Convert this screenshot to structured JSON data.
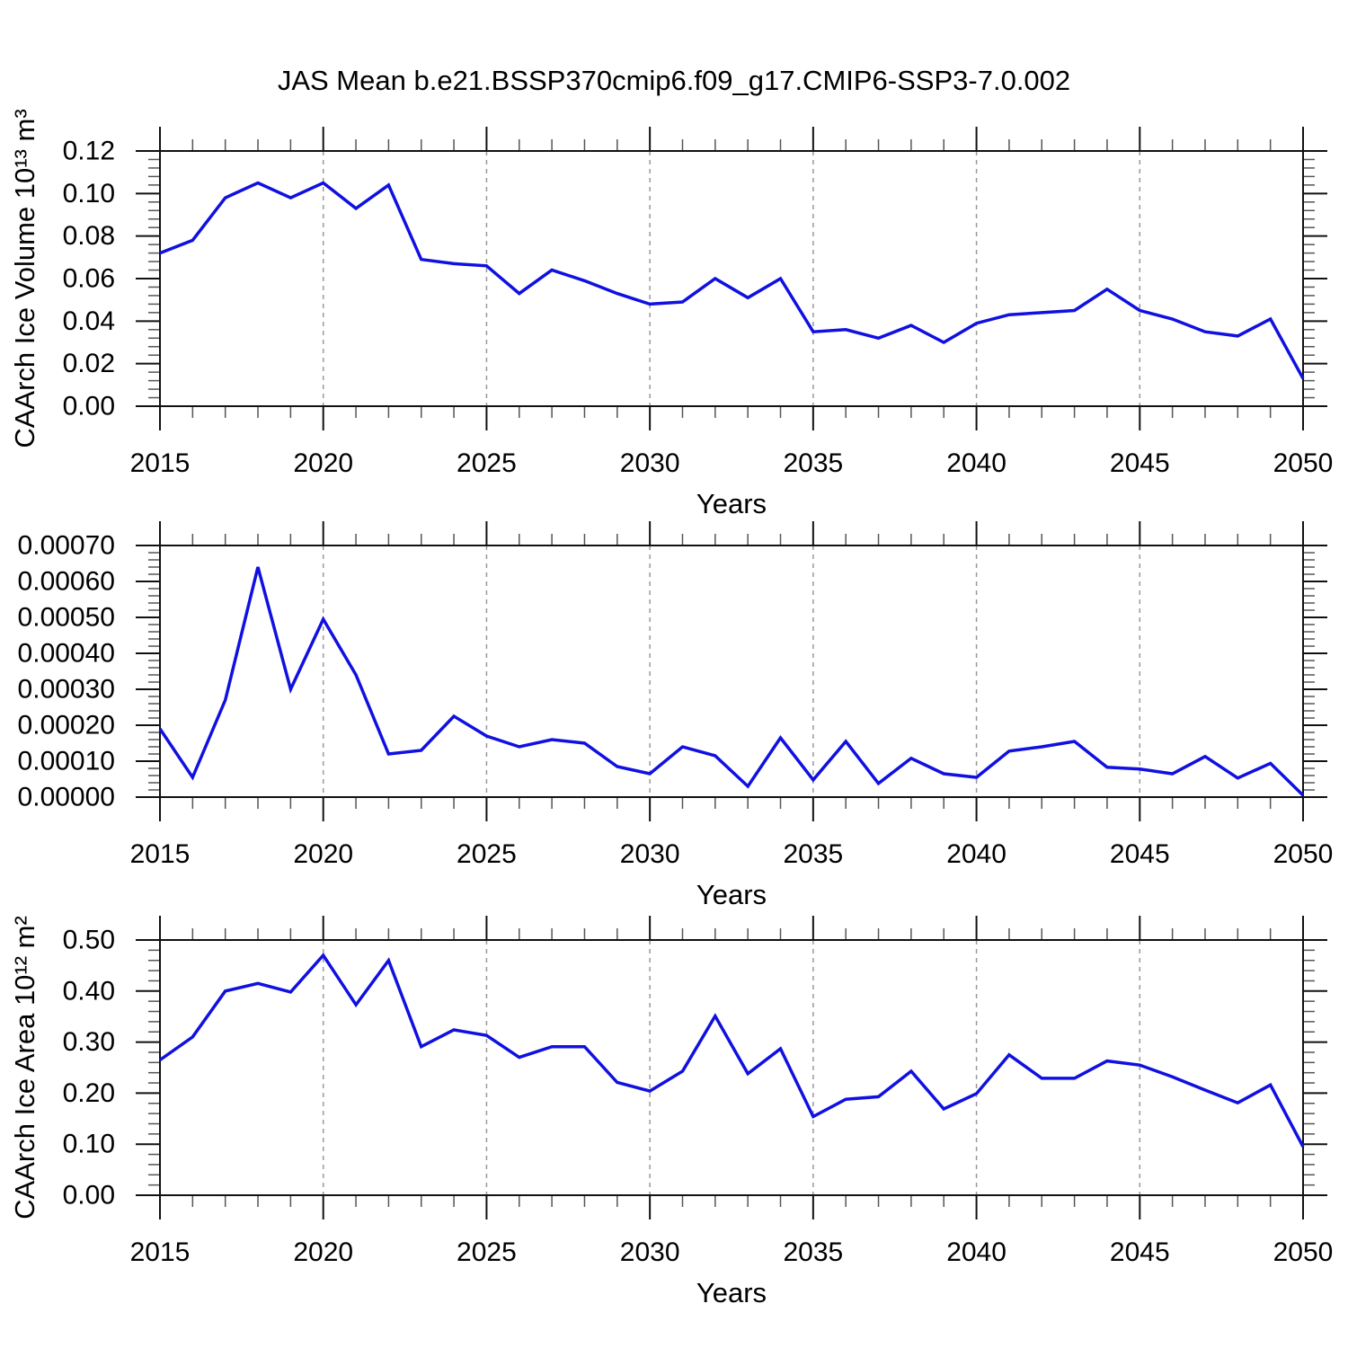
{
  "page": {
    "title": "JAS Mean b.e21.BSSP370cmip6.f09_g17.CMIP6-SSP3-7.0.002"
  },
  "style": {
    "line_color": "#1010e0",
    "grid_color": "#999999",
    "frame_color": "#111111",
    "text_color": "#000000"
  },
  "axis": {
    "xlabel": "Years",
    "x_range": [
      2015,
      2050
    ],
    "x_major_ticks": [
      2015,
      2020,
      2025,
      2030,
      2035,
      2040,
      2045,
      2050
    ],
    "x_major_tick_labels": [
      "2015",
      "2020",
      "2025",
      "2030",
      "2035",
      "2040",
      "2045",
      "2050"
    ],
    "x_minor_step": 1,
    "grid_years": [
      2020,
      2025,
      2030,
      2035,
      2040,
      2045
    ]
  },
  "years": [
    2015,
    2016,
    2017,
    2018,
    2019,
    2020,
    2021,
    2022,
    2023,
    2024,
    2025,
    2026,
    2027,
    2028,
    2029,
    2030,
    2031,
    2032,
    2033,
    2034,
    2035,
    2036,
    2037,
    2038,
    2039,
    2040,
    2041,
    2042,
    2043,
    2044,
    2045,
    2046,
    2047,
    2048,
    2049,
    2050
  ],
  "chart_data": [
    {
      "type": "line",
      "name": "volume-panel",
      "title": "",
      "ylabel": "CAArch Ice Volume 10¹³ m³",
      "xlabel": "Years",
      "ylim": [
        0,
        0.12
      ],
      "ytick_step": 0.02,
      "ytick_minor_step": 0.004,
      "ytick_labels": [
        "0.00",
        "0.02",
        "0.04",
        "0.06",
        "0.08",
        "0.10",
        "0.12"
      ],
      "grid": "vertical-dashed",
      "legend": "none",
      "x": [
        2015,
        2016,
        2017,
        2018,
        2019,
        2020,
        2021,
        2022,
        2023,
        2024,
        2025,
        2026,
        2027,
        2028,
        2029,
        2030,
        2031,
        2032,
        2033,
        2034,
        2035,
        2036,
        2037,
        2038,
        2039,
        2040,
        2041,
        2042,
        2043,
        2044,
        2045,
        2046,
        2047,
        2048,
        2049,
        2050
      ],
      "values": [
        0.072,
        0.078,
        0.098,
        0.105,
        0.098,
        0.105,
        0.093,
        0.104,
        0.069,
        0.067,
        0.066,
        0.053,
        0.064,
        0.059,
        0.053,
        0.048,
        0.049,
        0.06,
        0.051,
        0.06,
        0.035,
        0.036,
        0.032,
        0.038,
        0.03,
        0.039,
        0.043,
        0.044,
        0.045,
        0.055,
        0.045,
        0.041,
        0.035,
        0.033,
        0.041,
        0.013
      ]
    },
    {
      "type": "line",
      "name": "middle-panel",
      "title": "",
      "ylabel": "",
      "xlabel": "Years",
      "ylim": [
        0,
        0.0007
      ],
      "ytick_step": 0.0001,
      "ytick_minor_step": 2e-05,
      "ytick_labels": [
        "0.00000",
        "0.00010",
        "0.00020",
        "0.00030",
        "0.00040",
        "0.00050",
        "0.00060",
        "0.00070"
      ],
      "grid": "vertical-dashed",
      "legend": "none",
      "x": [
        2015,
        2016,
        2017,
        2018,
        2019,
        2020,
        2021,
        2022,
        2023,
        2024,
        2025,
        2026,
        2027,
        2028,
        2029,
        2030,
        2031,
        2032,
        2033,
        2034,
        2035,
        2036,
        2037,
        2038,
        2039,
        2040,
        2041,
        2042,
        2043,
        2044,
        2045,
        2046,
        2047,
        2048,
        2049,
        2050
      ],
      "values": [
        0.00019,
        5.5e-05,
        0.00027,
        0.00064,
        0.0003,
        0.000495,
        0.00034,
        0.00012,
        0.00013,
        0.000225,
        0.00017,
        0.00014,
        0.00016,
        0.00015,
        8.5e-05,
        6.5e-05,
        0.00014,
        0.000115,
        3e-05,
        0.000165,
        4.8e-05,
        0.000155,
        3.8e-05,
        0.000108,
        6.5e-05,
        5.5e-05,
        0.000128,
        0.00014,
        0.000155,
        8.3e-05,
        7.8e-05,
        6.5e-05,
        0.000113,
        5.3e-05,
        9.4e-05,
        5e-06
      ]
    },
    {
      "type": "line",
      "name": "area-panel",
      "title": "",
      "ylabel": "CAArch Ice Area 10¹² m²",
      "xlabel": "Years",
      "ylim": [
        0,
        0.5
      ],
      "ytick_step": 0.1,
      "ytick_minor_step": 0.02,
      "ytick_labels": [
        "0.00",
        "0.10",
        "0.20",
        "0.30",
        "0.40",
        "0.50"
      ],
      "grid": "vertical-dashed",
      "legend": "none",
      "x": [
        2015,
        2016,
        2017,
        2018,
        2019,
        2020,
        2021,
        2022,
        2023,
        2024,
        2025,
        2026,
        2027,
        2028,
        2029,
        2030,
        2031,
        2032,
        2033,
        2034,
        2035,
        2036,
        2037,
        2038,
        2039,
        2040,
        2041,
        2042,
        2043,
        2044,
        2045,
        2046,
        2047,
        2048,
        2049,
        2050
      ],
      "values": [
        0.265,
        0.31,
        0.4,
        0.415,
        0.398,
        0.47,
        0.373,
        0.46,
        0.291,
        0.324,
        0.313,
        0.27,
        0.291,
        0.291,
        0.221,
        0.204,
        0.243,
        0.351,
        0.238,
        0.287,
        0.154,
        0.188,
        0.193,
        0.243,
        0.169,
        0.199,
        0.275,
        0.229,
        0.229,
        0.263,
        0.255,
        0.232,
        0.206,
        0.181,
        0.216,
        0.095
      ]
    }
  ]
}
